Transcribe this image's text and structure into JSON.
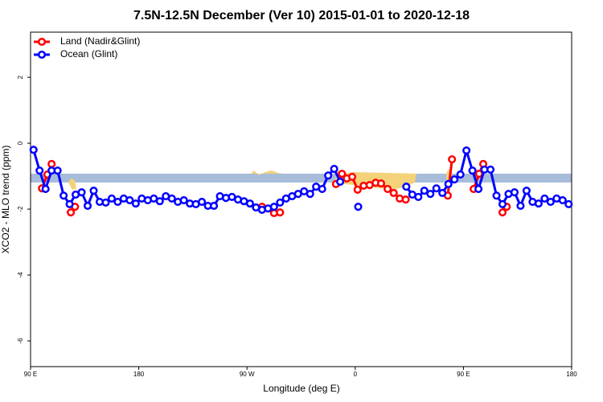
{
  "chart_data": {
    "type": "line",
    "title": "7.5N-12.5N December (Ver 10)   2015-01-01 to 2020-12-18",
    "x_label": "Longitude (deg E)",
    "y_label": "XCO2 - MLO trend (ppm)",
    "xlim": [
      90,
      540
    ],
    "ylim": [
      -6.78,
      3.37
    ],
    "xticks": [
      {
        "value": 90,
        "label": "90 E"
      },
      180,
      {
        "value": 270,
        "label": "90 W"
      },
      {
        "value": 360,
        "label": "0"
      },
      {
        "value": 450,
        "label": "90 E"
      },
      {
        "value": 540,
        "label": "180"
      }
    ],
    "yticks": [
      2,
      0,
      -2,
      -4,
      -6
    ],
    "legend": "top-left",
    "series": [
      {
        "name": "Land (Nadir&Glint)",
        "color": "#ff0000",
        "x": [
          99.5,
          104,
          107.5,
          115,
          123.5,
          127,
          200,
          282.5,
          292.5,
          297.5,
          320,
          344,
          349,
          353,
          357.5,
          362,
          367,
          372,
          377,
          381.5,
          387,
          392,
          397,
          402,
          420,
          437,
          440.5,
          450,
          458.5,
          463,
          466.5,
          475,
          482.5,
          486
        ],
        "values": [
          -1.37,
          -0.95,
          -0.63,
          null,
          -2.1,
          -1.93,
          null,
          -1.93,
          -2.12,
          -2.1,
          null,
          -1.24,
          -0.93,
          -1.07,
          -1.02,
          -1.41,
          -1.29,
          -1.27,
          -1.2,
          -1.22,
          -1.39,
          -1.51,
          -1.68,
          -1.71,
          null,
          -1.59,
          -0.49,
          null,
          -1.39,
          -0.93,
          -0.63,
          null,
          -2.1,
          -1.93
        ]
      },
      {
        "name": "Ocean (Glint)",
        "color": "#0000ff",
        "x": [
          92.5,
          97.5,
          102.5,
          107.5,
          112.5,
          117.5,
          122.5,
          127.5,
          132.5,
          137.5,
          142.5,
          147.5,
          152.5,
          157.5,
          162.5,
          167.5,
          172.5,
          177.5,
          182.5,
          187.5,
          192.5,
          197.5,
          202.5,
          207.5,
          212.5,
          217.5,
          222.5,
          227.5,
          232.5,
          237.5,
          242.5,
          247.5,
          252.5,
          257.5,
          262.5,
          267.5,
          272.5,
          277.5,
          282.5,
          287.5,
          292.5,
          297.5,
          302.5,
          307.5,
          312.5,
          317.5,
          322.5,
          327.5,
          332.5,
          337.5,
          342.5,
          347.5,
          352.5,
          362.5,
          367.5,
          402.5,
          407.5,
          412.5,
          417.5,
          422.5,
          427.5,
          432.5,
          437.5,
          442.5,
          447.5,
          452.5,
          457.5,
          462.5,
          467.5,
          472.5,
          477.5,
          482.5,
          487.5,
          492.5,
          497.5,
          502.5,
          507.5,
          512.5,
          517.5,
          522.5,
          527.5,
          532.5,
          537.5
        ],
        "values": [
          -0.2,
          -0.83,
          -1.39,
          -0.83,
          -0.83,
          -1.59,
          -1.85,
          -1.56,
          -1.49,
          -1.9,
          -1.44,
          -1.78,
          -1.8,
          -1.68,
          -1.78,
          -1.68,
          -1.73,
          -1.83,
          -1.68,
          -1.73,
          -1.68,
          -1.76,
          -1.61,
          -1.68,
          -1.78,
          -1.73,
          -1.83,
          -1.85,
          -1.78,
          -1.9,
          -1.9,
          -1.61,
          -1.66,
          -1.63,
          -1.71,
          -1.76,
          -1.83,
          -1.95,
          -2.02,
          -1.98,
          -1.93,
          -1.8,
          -1.68,
          -1.61,
          -1.54,
          -1.46,
          -1.54,
          -1.32,
          -1.39,
          -0.98,
          -0.78,
          -1.17,
          null,
          -1.93,
          null,
          -1.32,
          -1.56,
          -1.63,
          -1.44,
          -1.54,
          -1.37,
          -1.51,
          -1.24,
          -1.1,
          -0.95,
          -0.22,
          -0.83,
          -1.39,
          -0.8,
          -0.8,
          -1.59,
          -1.85,
          -1.54,
          -1.49,
          -1.9,
          -1.44,
          -1.78,
          -1.83,
          -1.68,
          -1.78,
          -1.68,
          -1.73,
          -1.85
        ]
      }
    ]
  }
}
